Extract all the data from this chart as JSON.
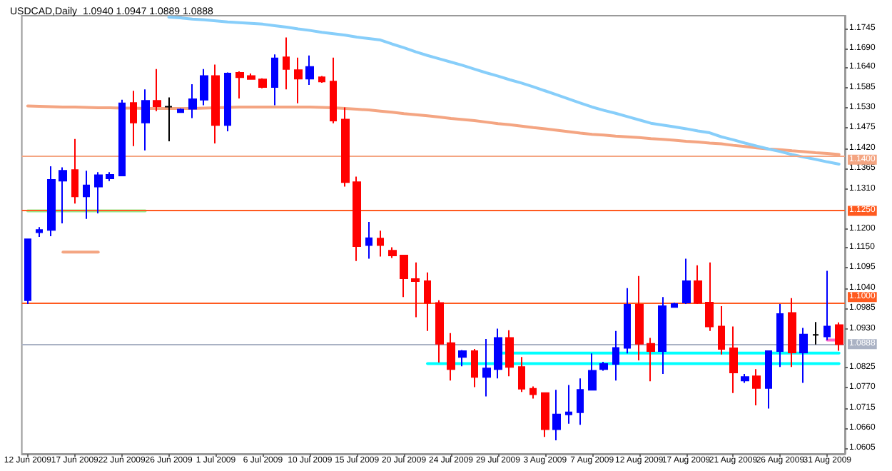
{
  "chart_data": {
    "type": "candlestick",
    "title": "USDCAD,Daily  1.0940 1.0947 1.0889 1.0888",
    "categories": [
      "12 Jun 2009",
      null,
      null,
      null,
      "17 Jun 2009",
      null,
      null,
      null,
      "22 Jun 2009",
      null,
      null,
      null,
      "26 Jun 2009",
      null,
      null,
      null,
      "1 Jul 2009",
      null,
      null,
      null,
      "6 Jul 2009",
      null,
      null,
      null,
      "10 Jul 2009",
      null,
      null,
      null,
      "15 Jul 2009",
      null,
      null,
      null,
      "20 Jul 2009",
      null,
      null,
      null,
      "24 Jul 2009",
      null,
      null,
      null,
      "29 Jul 2009",
      null,
      null,
      null,
      "3 Aug 2009",
      null,
      null,
      null,
      "7 Aug 2009",
      null,
      null,
      null,
      "12 Aug 2009",
      null,
      null,
      null,
      "17 Aug 2009",
      null,
      null,
      null,
      "21 Aug 2009",
      null,
      null,
      null,
      "26 Aug 2009",
      null,
      null,
      null,
      "31 Aug 2009",
      null
    ],
    "ohlc": [
      [
        1.1007,
        1.1175,
        1.0997,
        1.1173
      ],
      [
        1.1192,
        1.1206,
        1.1179,
        1.1198
      ],
      [
        1.1198,
        1.1371,
        1.1181,
        1.1334
      ],
      [
        1.1332,
        1.1368,
        1.1216,
        1.1359
      ],
      [
        1.1361,
        1.1445,
        1.127,
        1.1289
      ],
      [
        1.1289,
        1.1359,
        1.1228,
        1.1319
      ],
      [
        1.1316,
        1.1355,
        1.1243,
        1.1347
      ],
      [
        1.1338,
        1.1355,
        1.1331,
        1.1348
      ],
      [
        1.1346,
        1.1552,
        1.1346,
        1.1542
      ],
      [
        1.1543,
        1.1576,
        1.1426,
        1.149
      ],
      [
        1.149,
        1.158,
        1.1414,
        1.1549
      ],
      [
        1.1549,
        1.1635,
        1.1521,
        1.1534
      ],
      [
        1.1533,
        1.1558,
        1.1439,
        1.1533
      ],
      [
        1.1518,
        1.1528,
        1.1518,
        1.1525
      ],
      [
        1.1527,
        1.1594,
        1.1502,
        1.1553
      ],
      [
        1.1552,
        1.1635,
        1.1537,
        1.1616
      ],
      [
        1.1616,
        1.1647,
        1.1433,
        1.1483
      ],
      [
        1.1483,
        1.1626,
        1.1466,
        1.1623
      ],
      [
        1.1625,
        1.1629,
        1.1555,
        1.1613
      ],
      [
        1.1616,
        1.1623,
        1.1607,
        1.1608
      ],
      [
        1.1607,
        1.161,
        1.1583,
        1.1586
      ],
      [
        1.1586,
        1.1675,
        1.1537,
        1.1664
      ],
      [
        1.1667,
        1.1721,
        1.158,
        1.1635
      ],
      [
        1.1632,
        1.1666,
        1.1542,
        1.1609
      ],
      [
        1.1609,
        1.1672,
        1.1592,
        1.1641
      ],
      [
        1.1613,
        1.1616,
        1.1598,
        1.1601
      ],
      [
        1.1601,
        1.1666,
        1.1488,
        1.1495
      ],
      [
        1.1498,
        1.1531,
        1.1316,
        1.1328
      ],
      [
        1.1328,
        1.1343,
        1.1114,
        1.1154
      ],
      [
        1.1157,
        1.122,
        1.112,
        1.1176
      ],
      [
        1.1175,
        1.1196,
        1.1126,
        1.1157
      ],
      [
        1.1142,
        1.1151,
        1.1122,
        1.1129
      ],
      [
        1.1129,
        1.1129,
        1.1016,
        1.1067
      ],
      [
        1.1065,
        1.111,
        1.0961,
        1.1059
      ],
      [
        1.1059,
        1.1083,
        1.0924,
        1.1
      ],
      [
        1.1,
        1.1007,
        1.0838,
        1.0889
      ],
      [
        1.0891,
        1.0918,
        1.0789,
        1.082
      ],
      [
        1.0853,
        1.0872,
        1.0828,
        1.0869
      ],
      [
        1.0869,
        1.0875,
        1.0771,
        1.0799
      ],
      [
        1.0799,
        1.0902,
        1.0746,
        1.0822
      ],
      [
        1.082,
        1.093,
        1.0795,
        1.0905
      ],
      [
        1.0905,
        1.0926,
        1.0801,
        1.0826
      ],
      [
        1.0826,
        1.0853,
        1.0758,
        1.0767
      ],
      [
        1.0767,
        1.0773,
        1.074,
        1.0752
      ],
      [
        1.0755,
        1.0755,
        1.0636,
        1.0657
      ],
      [
        1.0657,
        1.0764,
        1.0627,
        1.0697
      ],
      [
        1.0697,
        1.0777,
        1.0672,
        1.0703
      ],
      [
        1.0703,
        1.0795,
        1.0669,
        1.0764
      ],
      [
        1.0764,
        1.0863,
        1.0762,
        1.0816
      ],
      [
        1.082,
        1.084,
        1.0816,
        1.0834
      ],
      [
        1.0834,
        1.0924,
        1.0789,
        1.0878
      ],
      [
        1.0878,
        1.104,
        1.0863,
        1.0995
      ],
      [
        1.0995,
        1.1073,
        1.0844,
        1.0889
      ],
      [
        1.0889,
        1.0905,
        1.0787,
        1.0869
      ],
      [
        1.0869,
        1.1016,
        1.0807,
        1.0991
      ],
      [
        1.0989,
        1.1001,
        1.0988,
        1.0997
      ],
      [
        1.1001,
        1.112,
        1.0997,
        1.1059
      ],
      [
        1.1059,
        1.1102,
        1.0997,
        1.1
      ],
      [
        1.1001,
        1.111,
        1.0924,
        1.0936
      ],
      [
        1.0936,
        1.0991,
        1.086,
        1.0875
      ],
      [
        1.0877,
        1.0936,
        1.0755,
        1.0811
      ],
      [
        1.0789,
        1.0807,
        1.0783,
        1.0799
      ],
      [
        1.0801,
        1.082,
        1.0722,
        1.0769
      ],
      [
        1.0769,
        1.0869,
        1.0713,
        1.0869
      ],
      [
        1.0869,
        1.0997,
        1.0826,
        1.097
      ],
      [
        1.0973,
        1.1013,
        1.0826,
        1.0865
      ],
      [
        1.0865,
        1.0932,
        1.0783,
        1.0914
      ],
      [
        1.0913,
        1.0948,
        1.0887,
        1.0913
      ],
      [
        1.0909,
        1.1087,
        1.0899,
        1.0936
      ],
      [
        1.094,
        1.0947,
        1.087,
        1.0888
      ]
    ],
    "colors": [
      "#0000ff",
      "#0000ff",
      "#0000ff",
      "#0000ff",
      "#ff0000",
      "#0000ff",
      "#0000ff",
      "#0000ff",
      "#0000ff",
      "#ff0000",
      "#0000ff",
      "#ff0000",
      "#000000",
      "#0000ff",
      "#0000ff",
      "#0000ff",
      "#ff0000",
      "#0000ff",
      "#ff0000",
      "#ff0000",
      "#ff0000",
      "#0000ff",
      "#ff0000",
      "#ff0000",
      "#0000ff",
      "#ff0000",
      "#ff0000",
      "#ff0000",
      "#ff0000",
      "#0000ff",
      "#ff0000",
      "#ff0000",
      "#ff0000",
      "#ff0000",
      "#ff0000",
      "#ff0000",
      "#ff0000",
      "#0000ff",
      "#ff0000",
      "#0000ff",
      "#0000ff",
      "#ff0000",
      "#ff0000",
      "#ff0000",
      "#ff0000",
      "#0000ff",
      "#0000ff",
      "#0000ff",
      "#0000ff",
      "#0000ff",
      "#0000ff",
      "#0000ff",
      "#ff0000",
      "#ff0000",
      "#0000ff",
      "#0000ff",
      "#0000ff",
      "#ff0000",
      "#ff0000",
      "#ff0000",
      "#ff0000",
      "#0000ff",
      "#ff0000",
      "#0000ff",
      "#0000ff",
      "#ff0000",
      "#0000ff",
      "#000000",
      "#0000ff",
      "#ff0000"
    ],
    "series": [
      {
        "type": "line",
        "color": "#f4a582",
        "values": [
          1.1535,
          1.1534,
          1.1533,
          1.1532,
          1.1532,
          1.1531,
          1.153,
          1.153,
          1.1529,
          1.1529,
          1.1528,
          1.1528,
          1.1528,
          1.1528,
          1.1528,
          1.1529,
          1.153,
          1.1531,
          1.1532,
          1.1532,
          1.1532,
          1.1532,
          1.1532,
          1.1532,
          1.1532,
          1.1531,
          1.153,
          1.1528,
          1.1526,
          1.1524,
          1.1521,
          1.1518,
          1.1514,
          1.1511,
          1.1508,
          1.1505,
          1.1501,
          1.1498,
          1.1495,
          1.1491,
          1.1487,
          1.1484,
          1.148,
          1.1476,
          1.1473,
          1.1469,
          1.1465,
          1.1461,
          1.1458,
          1.1456,
          1.1453,
          1.1451,
          1.1449,
          1.1446,
          1.1444,
          1.1442,
          1.1439,
          1.1437,
          1.1434,
          1.1432,
          1.1428,
          1.1425,
          1.1421,
          1.1418,
          1.1416,
          1.1413,
          1.1411,
          1.1408,
          1.1406,
          1.1403
        ]
      },
      {
        "type": "line",
        "color": "#87cefa",
        "values": [
          null,
          null,
          null,
          null,
          null,
          null,
          null,
          null,
          null,
          null,
          null,
          null,
          1.1776,
          1.1774,
          1.1771,
          1.1769,
          1.1766,
          1.1763,
          1.1761,
          1.1759,
          1.1757,
          1.1753,
          1.1749,
          1.1744,
          1.174,
          1.1735,
          1.1731,
          1.1727,
          1.1722,
          1.1718,
          1.1714,
          1.1703,
          1.1693,
          1.1682,
          1.1672,
          1.1663,
          1.1654,
          1.1645,
          1.1635,
          1.1625,
          1.1616,
          1.1606,
          1.1597,
          1.1587,
          1.1576,
          1.1565,
          1.1554,
          1.1543,
          1.1532,
          1.1523,
          1.1515,
          1.1506,
          1.1497,
          1.1488,
          1.1483,
          1.1478,
          1.1473,
          1.1467,
          1.1462,
          1.1451,
          1.1443,
          1.1434,
          1.1426,
          1.1418,
          1.1411,
          1.1403,
          1.1396,
          1.139,
          1.1383,
          1.1377
        ]
      },
      {
        "type": "line",
        "color": "#90ee90",
        "values": [
          1.125,
          1.125,
          1.125,
          1.125,
          1.125,
          1.125,
          1.125,
          1.125,
          1.125,
          1.125,
          1.125,
          null,
          null,
          null,
          null,
          null,
          null,
          null,
          null,
          null,
          null,
          null,
          null,
          null,
          null,
          null,
          null,
          null,
          null,
          null,
          null,
          null,
          null,
          null,
          null,
          null,
          null,
          null,
          null,
          null,
          null,
          null,
          null,
          null,
          null,
          null,
          null,
          null,
          null,
          null,
          null,
          null,
          null,
          null,
          null,
          null,
          null,
          null,
          null,
          null,
          null,
          null,
          null,
          null,
          null,
          null,
          null,
          null,
          null,
          null
        ]
      },
      {
        "type": "line",
        "color": "#f4a582",
        "values": [
          null,
          null,
          null,
          1.1138,
          1.1138,
          1.1138,
          1.1138,
          null,
          null,
          null,
          null,
          null,
          null,
          null,
          null,
          null,
          null,
          null,
          null,
          null,
          null,
          null,
          null,
          null,
          null,
          null,
          null,
          null,
          null,
          null,
          null,
          null,
          null,
          null,
          null,
          null,
          null,
          null,
          null,
          null,
          null,
          null,
          null,
          null,
          null,
          null,
          null,
          null,
          null,
          null,
          null,
          null,
          null,
          null,
          null,
          null,
          null,
          null,
          null,
          null,
          null,
          null,
          null,
          null,
          null,
          null,
          null,
          null,
          null,
          null
        ]
      },
      {
        "type": "line",
        "color": "#00ffff",
        "values": [
          null,
          null,
          null,
          null,
          null,
          null,
          null,
          null,
          null,
          null,
          null,
          null,
          null,
          null,
          null,
          null,
          null,
          null,
          null,
          null,
          null,
          null,
          null,
          null,
          null,
          null,
          null,
          null,
          null,
          null,
          null,
          null,
          null,
          null,
          null,
          null,
          null,
          null,
          null,
          null,
          1.0864,
          1.0864,
          1.0864,
          1.0864,
          1.0864,
          1.0864,
          1.0864,
          1.0864,
          1.0864,
          1.0864,
          1.0864,
          1.0864,
          1.0864,
          1.0864,
          1.0864,
          1.0864,
          1.0864,
          1.0864,
          1.0864,
          1.0864,
          1.0864,
          1.0864,
          1.0864,
          1.0864,
          1.0864,
          1.0864,
          1.0864,
          1.0864,
          1.0864,
          1.0864
        ]
      },
      {
        "type": "line",
        "color": "#00ffff",
        "values": [
          null,
          null,
          null,
          null,
          null,
          null,
          null,
          null,
          null,
          null,
          null,
          null,
          null,
          null,
          null,
          null,
          null,
          null,
          null,
          null,
          null,
          null,
          null,
          null,
          null,
          null,
          null,
          null,
          null,
          null,
          null,
          null,
          null,
          null,
          1.0835,
          1.0835,
          1.0835,
          1.0835,
          1.0835,
          1.0835,
          1.0835,
          1.0835,
          1.0835,
          1.0835,
          1.0835,
          1.0835,
          1.0835,
          1.0835,
          1.0835,
          1.0835,
          1.0835,
          1.0835,
          1.0835,
          1.0835,
          1.0835,
          1.0835,
          1.0835,
          1.0835,
          1.0835,
          1.0835,
          1.0835,
          1.0835,
          1.0835,
          1.0835,
          1.0835,
          1.0835,
          1.0835,
          1.0835,
          1.0835,
          1.0835
        ]
      },
      {
        "type": "line",
        "color": "#ff66cc",
        "values": [
          null,
          null,
          null,
          null,
          null,
          null,
          null,
          null,
          null,
          null,
          null,
          null,
          null,
          null,
          null,
          null,
          null,
          null,
          null,
          null,
          null,
          null,
          null,
          null,
          null,
          null,
          null,
          null,
          null,
          null,
          null,
          null,
          null,
          null,
          null,
          null,
          null,
          null,
          null,
          null,
          null,
          null,
          null,
          null,
          null,
          null,
          null,
          null,
          null,
          null,
          null,
          null,
          null,
          null,
          null,
          null,
          null,
          null,
          null,
          null,
          null,
          null,
          null,
          null,
          null,
          null,
          null,
          null,
          1.0899,
          1.0899
        ]
      }
    ],
    "ref_lines": [
      {
        "axis": "y",
        "value": 1.14,
        "label": "1.1400",
        "color": "#f4a582"
      },
      {
        "axis": "y",
        "value": 1.125,
        "label": "1.1250",
        "color": "#ff5a1f"
      },
      {
        "axis": "y",
        "value": 1.1,
        "label": "1.1000",
        "color": "#ff5a1f"
      },
      {
        "axis": "y",
        "value": 1.0888,
        "label": "1.0888",
        "color": "#aab2c4"
      }
    ],
    "ylim": [
      1.059,
      1.178
    ],
    "yticks": [
      1.1745,
      {
        "value": 1.169,
        "label": "1.1690"
      },
      {
        "value": 1.164,
        "label": "1.1640"
      },
      1.1585,
      {
        "value": 1.153,
        "label": "1.1530"
      },
      1.1475,
      {
        "value": 1.142,
        "label": "1.1420"
      },
      1.1365,
      {
        "value": 1.131,
        "label": "1.1310"
      },
      {
        "value": 1.12,
        "label": "1.1200"
      },
      {
        "value": 1.115,
        "label": "1.1150"
      },
      1.1095,
      {
        "value": 1.104,
        "label": "1.1040"
      },
      1.0985,
      {
        "value": 1.093,
        "label": "1.0930"
      },
      1.0825,
      {
        "value": 1.077,
        "label": "1.0770"
      },
      1.0715,
      {
        "value": 1.066,
        "label": "1.0660"
      },
      1.0605
    ],
    "grid": false
  }
}
